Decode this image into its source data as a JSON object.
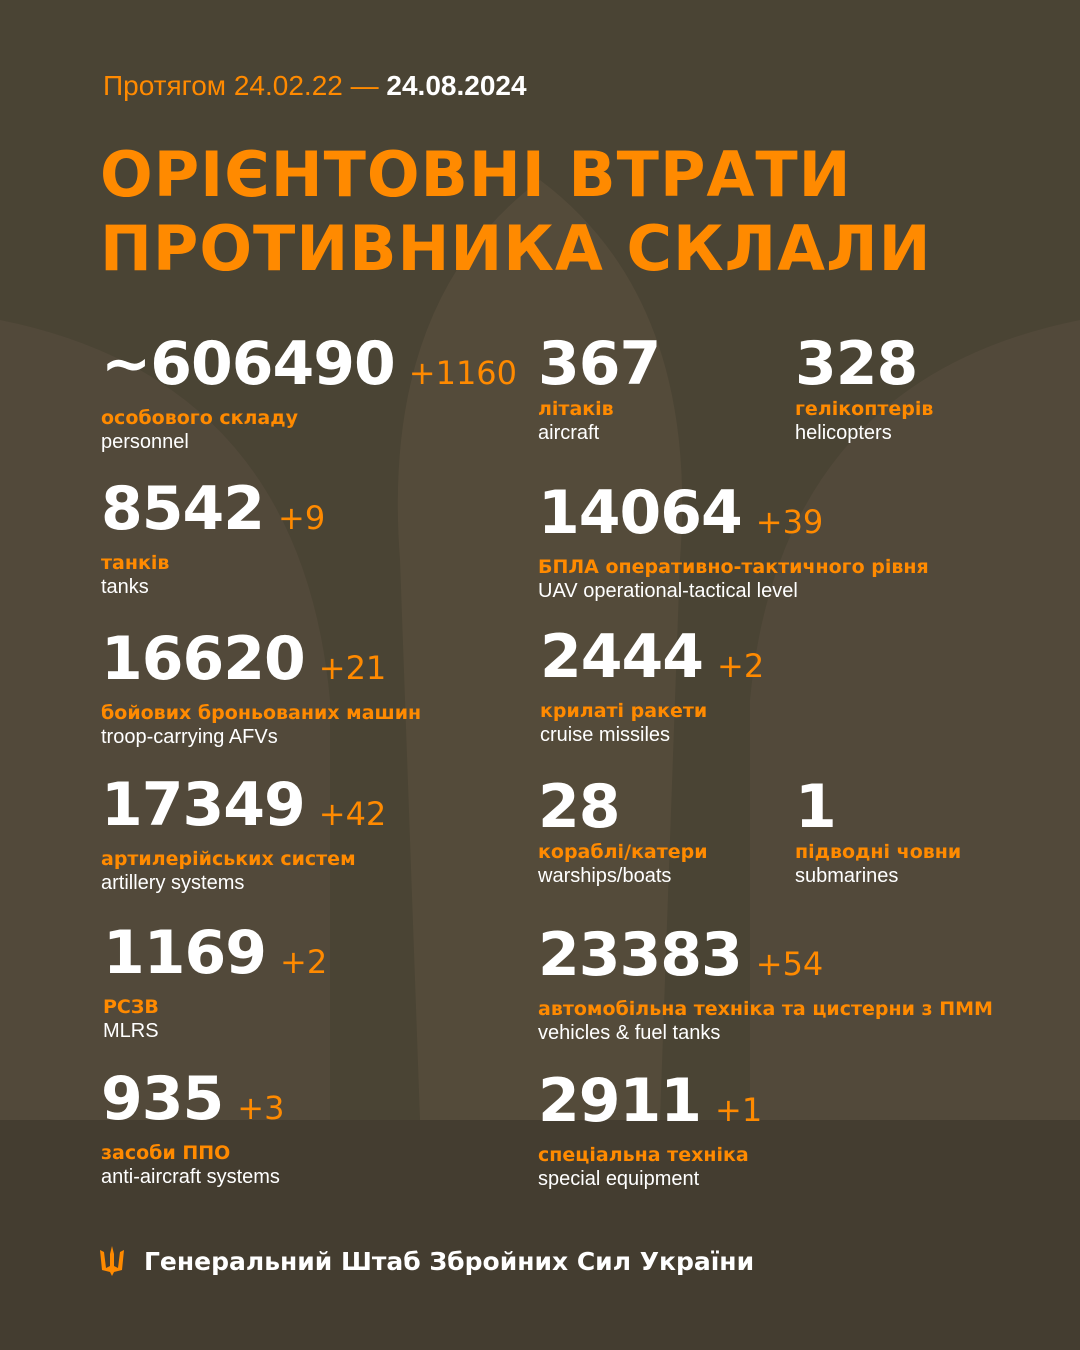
{
  "header": {
    "period_prefix": "Протягом 24.02.22 —",
    "period_end": "24.08.2024",
    "title_line1": "ОРІЄНТОВНІ ВТРАТИ",
    "title_line2": "ПРОТИВНИКА СКЛАЛИ"
  },
  "items": [
    {
      "value": "~606490",
      "delta": "+1160",
      "uk": "особового складу",
      "en": "personnel"
    },
    {
      "value": "367",
      "delta": "",
      "uk": "літаків",
      "en": "aircraft"
    },
    {
      "value": "328",
      "delta": "",
      "uk": "гелікоптерів",
      "en": "helicopters"
    },
    {
      "value": "8542",
      "delta": "+9",
      "uk": "танків",
      "en": "tanks"
    },
    {
      "value": "14064",
      "delta": "+39",
      "uk": "БПЛА оперативно-тактичного рівня",
      "en": "UAV operational-tactical level"
    },
    {
      "value": "16620",
      "delta": "+21",
      "uk": "бойових броньованих машин",
      "en": "troop-carrying AFVs"
    },
    {
      "value": "2444",
      "delta": "+2",
      "uk": "крилаті ракети",
      "en": "cruise missiles"
    },
    {
      "value": "17349",
      "delta": "+42",
      "uk": "артилерійських систем",
      "en": "artillery systems"
    },
    {
      "value": "28",
      "delta": "",
      "uk": "кораблі/катери",
      "en": "warships/boats"
    },
    {
      "value": "1",
      "delta": "",
      "uk": "підводні човни",
      "en": "submarines"
    },
    {
      "value": "1169",
      "delta": "+2",
      "uk": "РСЗВ",
      "en": "MLRS"
    },
    {
      "value": "23383",
      "delta": "+54",
      "uk": "автомобільна техніка та цистерни з ПММ",
      "en": "vehicles & fuel tanks"
    },
    {
      "value": "935",
      "delta": "+3",
      "uk": "засоби ППО",
      "en": "anti-aircraft systems"
    },
    {
      "value": "2911",
      "delta": "+1",
      "uk": "спеціальна техніка",
      "en": "special equipment"
    }
  ],
  "footer": {
    "org": "Генеральний Штаб Збройних Сил України",
    "icon": "trident-icon"
  },
  "colors": {
    "background": "#4a4434",
    "accent": "#ff8a00",
    "text": "#ffffff"
  }
}
